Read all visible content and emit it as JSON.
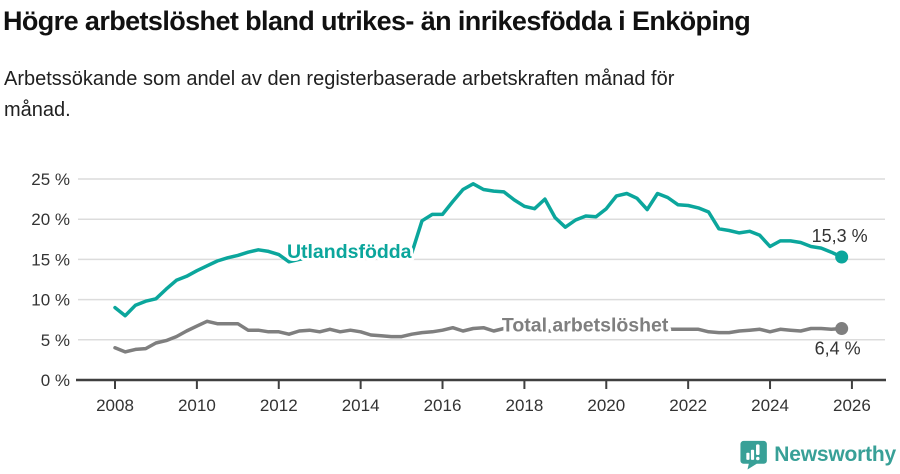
{
  "header": {
    "title": "Högre arbetslöshet bland utrikes- än inrikesfödda i Enköping",
    "subtitle_line1": "Arbetssökande som andel av den registerbaserade arbetskraften månad för",
    "subtitle_line2": "månad."
  },
  "chart_data": {
    "type": "line",
    "title": "Högre arbetslöshet bland utrikes- än inrikesfödda i Enköping",
    "subtitle": "Arbetssökande som andel av den registerbaserade arbetskraften månad för månad.",
    "xlabel": "",
    "ylabel": "",
    "xlim": [
      2007.1,
      2026.8
    ],
    "ylim": [
      0,
      25
    ],
    "grid": "horizontal",
    "legend_position": "inline-labels",
    "x_ticks": [
      2008,
      2010,
      2012,
      2014,
      2016,
      2018,
      2020,
      2022,
      2024,
      2026
    ],
    "y_ticks": [
      0,
      5,
      10,
      15,
      20,
      25
    ],
    "y_tick_suffix": " %",
    "x": [
      2008.0,
      2008.25,
      2008.5,
      2008.75,
      2009.0,
      2009.25,
      2009.5,
      2009.75,
      2010.0,
      2010.25,
      2010.5,
      2010.75,
      2011.0,
      2011.25,
      2011.5,
      2011.75,
      2012.0,
      2012.25,
      2012.5,
      2012.75,
      2013.0,
      2013.25,
      2013.5,
      2013.75,
      2014.0,
      2014.25,
      2014.5,
      2014.75,
      2015.0,
      2015.25,
      2015.5,
      2015.75,
      2016.0,
      2016.25,
      2016.5,
      2016.75,
      2017.0,
      2017.25,
      2017.5,
      2017.75,
      2018.0,
      2018.25,
      2018.5,
      2018.75,
      2019.0,
      2019.25,
      2019.5,
      2019.75,
      2020.0,
      2020.25,
      2020.5,
      2020.75,
      2021.0,
      2021.25,
      2021.5,
      2021.75,
      2022.0,
      2022.25,
      2022.5,
      2022.75,
      2023.0,
      2023.25,
      2023.5,
      2023.75,
      2024.0,
      2024.25,
      2024.5,
      2024.75,
      2025.0,
      2025.25,
      2025.5,
      2025.75
    ],
    "series": [
      {
        "name": "Utlandsfödda",
        "color": "#0ba69c",
        "end_value": 15.3,
        "end_label": "15,3 %",
        "values": [
          9.0,
          8.0,
          9.3,
          9.8,
          10.1,
          11.3,
          12.4,
          12.9,
          13.6,
          14.2,
          14.8,
          15.2,
          15.5,
          15.9,
          16.2,
          16.0,
          15.6,
          14.7,
          15.0,
          15.2,
          15.3,
          15.4,
          15.3,
          15.2,
          15.3,
          15.4,
          15.3,
          15.2,
          15.3,
          15.8,
          19.8,
          20.6,
          20.6,
          22.2,
          23.7,
          24.4,
          23.7,
          23.5,
          23.4,
          22.4,
          21.6,
          21.3,
          22.5,
          20.2,
          19.0,
          19.9,
          20.4,
          20.3,
          21.3,
          22.9,
          23.2,
          22.6,
          21.2,
          23.2,
          22.7,
          21.8,
          21.7,
          21.4,
          20.9,
          18.8,
          18.6,
          18.3,
          18.5,
          18.0,
          16.6,
          17.3,
          17.3,
          17.1,
          16.6,
          16.4,
          15.9,
          15.3
        ]
      },
      {
        "name": "Total arbetslöshet",
        "color": "#7f7f7f",
        "end_value": 6.4,
        "end_label": "6,4 %",
        "values": [
          4.0,
          3.5,
          3.8,
          3.9,
          4.6,
          4.9,
          5.4,
          6.1,
          6.7,
          7.3,
          7.0,
          7.0,
          7.0,
          6.2,
          6.2,
          6.0,
          6.0,
          5.7,
          6.1,
          6.2,
          6.0,
          6.3,
          6.0,
          6.2,
          6.0,
          5.6,
          5.5,
          5.4,
          5.4,
          5.7,
          5.9,
          6.0,
          6.2,
          6.5,
          6.1,
          6.4,
          6.5,
          6.1,
          6.4,
          6.3,
          6.2,
          6.2,
          6.1,
          6.1,
          6.1,
          6.2,
          6.2,
          6.3,
          6.6,
          7.0,
          7.1,
          6.8,
          6.5,
          6.4,
          6.3,
          6.3,
          6.3,
          6.3,
          6.0,
          5.9,
          5.9,
          6.1,
          6.2,
          6.3,
          6.0,
          6.3,
          6.2,
          6.1,
          6.4,
          6.4,
          6.3,
          6.4
        ]
      }
    ],
    "annotations": [
      {
        "text": "Utlandsfödda",
        "x": 2012.2,
        "y": 15.2,
        "color": "#0ba69c"
      },
      {
        "text": "Total arbetslöshet",
        "x": 2017.45,
        "y": 6.05,
        "color": "#7f7f7f"
      }
    ]
  },
  "footer": {
    "brand": "Newsworthy",
    "brand_color": "#38a097"
  },
  "colors": {
    "background": "#ffffff",
    "grid": "#dcdcdc",
    "axis": "#3f3f3f",
    "tick_text": "#333333",
    "title_text": "#111111"
  }
}
